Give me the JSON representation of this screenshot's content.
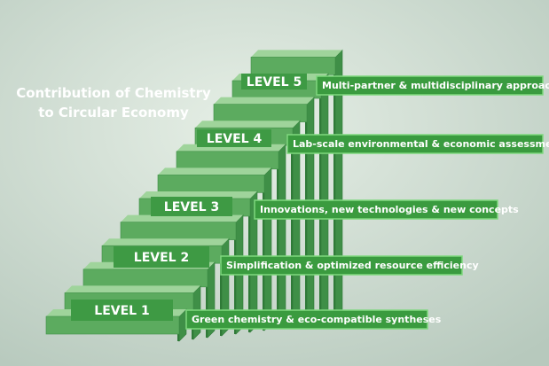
{
  "title": [
    "Contribution of Chemistry",
    "to Circular Economy"
  ],
  "levels": [
    {
      "label": "LEVEL 1",
      "description": "Green chemistry & eco-compatible syntheses"
    },
    {
      "label": "LEVEL 2",
      "description": "Simplification & optimized resource efficiency"
    },
    {
      "label": "LEVEL 3",
      "description": "Innovations, new technologies & new concepts"
    },
    {
      "label": "LEVEL 4",
      "description": "Lab-scale environmental & economic assessment"
    },
    {
      "label": "LEVEL 5",
      "description": "Multi-partner & multidisciplinary approach"
    }
  ]
}
